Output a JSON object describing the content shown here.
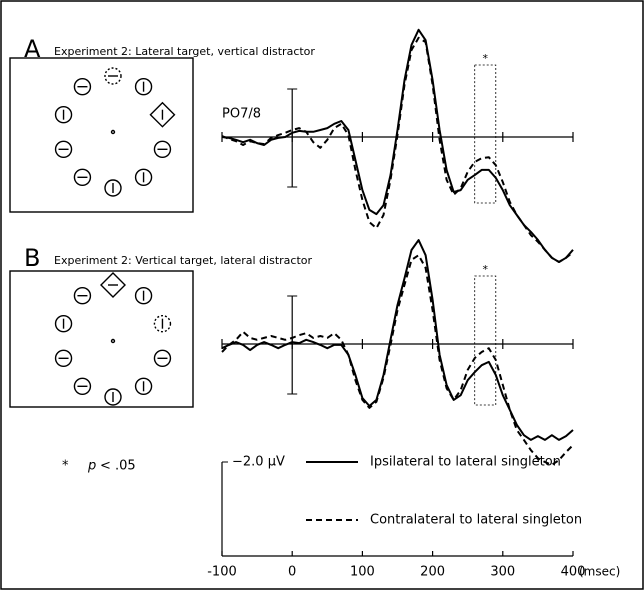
{
  "chart_data": [
    {
      "type": "line",
      "panel_label": "A",
      "title": "Experiment 2: Lateral target, vertical distractor",
      "channel_label": "PO7/8",
      "x": [
        -100,
        -90,
        -80,
        -70,
        -60,
        -50,
        -40,
        -30,
        -20,
        -10,
        0,
        10,
        20,
        30,
        40,
        50,
        60,
        70,
        80,
        90,
        100,
        110,
        120,
        130,
        140,
        150,
        160,
        170,
        180,
        190,
        200,
        210,
        220,
        230,
        240,
        250,
        260,
        270,
        280,
        290,
        300,
        310,
        320,
        330,
        340,
        350,
        360,
        370,
        380,
        390,
        400
      ],
      "xlim": [
        -100,
        400
      ],
      "xticks": [
        -100,
        0,
        100,
        200,
        300,
        400
      ],
      "ylim": [
        2.8,
        -2.5
      ],
      "significance_window": [
        260,
        290
      ],
      "significance_marker": "*",
      "series": [
        {
          "name": "Ipsilateral to lateral singleton",
          "color": "#000000",
          "style": "solid",
          "values": [
            0,
            0.02,
            0.06,
            0.11,
            0.06,
            0.13,
            0.17,
            0.06,
            0.02,
            0,
            -0.09,
            -0.13,
            -0.11,
            -0.11,
            -0.15,
            -0.19,
            -0.28,
            -0.34,
            -0.15,
            0.49,
            1.13,
            1.55,
            1.64,
            1.45,
            0.81,
            -0.15,
            -1.21,
            -1.96,
            -2.28,
            -2.06,
            -1.21,
            -0.15,
            0.7,
            1.17,
            1.13,
            0.91,
            0.81,
            0.7,
            0.7,
            0.87,
            1.13,
            1.45,
            1.66,
            1.87,
            2.02,
            2.19,
            2.4,
            2.57,
            2.66,
            2.57,
            2.4
          ]
        },
        {
          "name": "Contralateral to lateral singleton",
          "color": "#000000",
          "style": "dashed",
          "values": [
            -0.02,
            0.04,
            0.09,
            0.17,
            0.09,
            0.13,
            0.15,
            0.02,
            -0.04,
            -0.09,
            -0.15,
            -0.19,
            -0.11,
            0.11,
            0.23,
            0.06,
            -0.19,
            -0.28,
            -0.04,
            0.7,
            1.34,
            1.81,
            1.94,
            1.66,
            0.91,
            -0.04,
            -1.11,
            -1.85,
            -2.11,
            -2.02,
            -1.11,
            0.06,
            0.91,
            1.23,
            1.09,
            0.74,
            0.53,
            0.45,
            0.43,
            0.6,
            0.96,
            1.38,
            1.66,
            1.87,
            2.09,
            2.23,
            2.4,
            2.57,
            2.66,
            2.57,
            2.45
          ]
        }
      ]
    },
    {
      "type": "line",
      "panel_label": "B",
      "title": "Experiment 2: Vertical target, lateral distractor",
      "x": [
        -100,
        -90,
        -80,
        -70,
        -60,
        -50,
        -40,
        -30,
        -20,
        -10,
        0,
        10,
        20,
        30,
        40,
        50,
        60,
        70,
        80,
        90,
        100,
        110,
        120,
        130,
        140,
        150,
        160,
        170,
        180,
        190,
        200,
        210,
        220,
        230,
        240,
        250,
        260,
        270,
        280,
        290,
        300,
        310,
        320,
        330,
        340,
        350,
        360,
        370,
        380,
        390,
        400
      ],
      "xlim": [
        -100,
        400
      ],
      "xticks": [
        -100,
        0,
        100,
        200,
        300,
        400
      ],
      "xlabel": "(msec)",
      "ylim": [
        2.8,
        -2.5
      ],
      "scale_bar": {
        "value": -2.0,
        "label": "−2.0 µV"
      },
      "significance_window": [
        260,
        290
      ],
      "significance_marker": "*",
      "series": [
        {
          "color": "#000000",
          "style": "solid",
          "values": [
            0.09,
            0.02,
            -0.04,
            0.02,
            0.13,
            0.02,
            -0.04,
            0.02,
            0.09,
            0.02,
            -0.04,
            -0.02,
            -0.09,
            -0.04,
            0.02,
            0.09,
            0.02,
            0.02,
            0.23,
            0.66,
            1.15,
            1.32,
            1.19,
            0.66,
            -0.09,
            -0.83,
            -1.4,
            -2.0,
            -2.21,
            -1.89,
            -0.94,
            0.23,
            0.87,
            1.19,
            1.09,
            0.77,
            0.6,
            0.45,
            0.38,
            0.66,
            1.09,
            1.4,
            1.72,
            1.94,
            2.04,
            1.96,
            2.04,
            1.94,
            2.04,
            1.96,
            1.83
          ]
        },
        {
          "color": "#000000",
          "style": "dashed",
          "values": [
            0.17,
            0.02,
            -0.09,
            -0.26,
            -0.13,
            -0.09,
            -0.13,
            -0.17,
            -0.13,
            -0.09,
            -0.13,
            -0.19,
            -0.23,
            -0.13,
            -0.17,
            -0.13,
            -0.23,
            -0.09,
            0.23,
            0.77,
            1.19,
            1.36,
            1.23,
            0.72,
            0.02,
            -0.72,
            -1.26,
            -1.79,
            -1.89,
            -1.62,
            -0.72,
            0.34,
            0.94,
            1.19,
            0.98,
            0.55,
            0.3,
            0.17,
            0.09,
            0.34,
            0.87,
            1.4,
            1.83,
            2.04,
            2.26,
            2.43,
            2.51,
            2.57,
            2.47,
            2.3,
            2.15
          ]
        }
      ]
    }
  ],
  "footnote": {
    "marker": "*",
    "symbol": "p",
    "text": "< .05"
  }
}
